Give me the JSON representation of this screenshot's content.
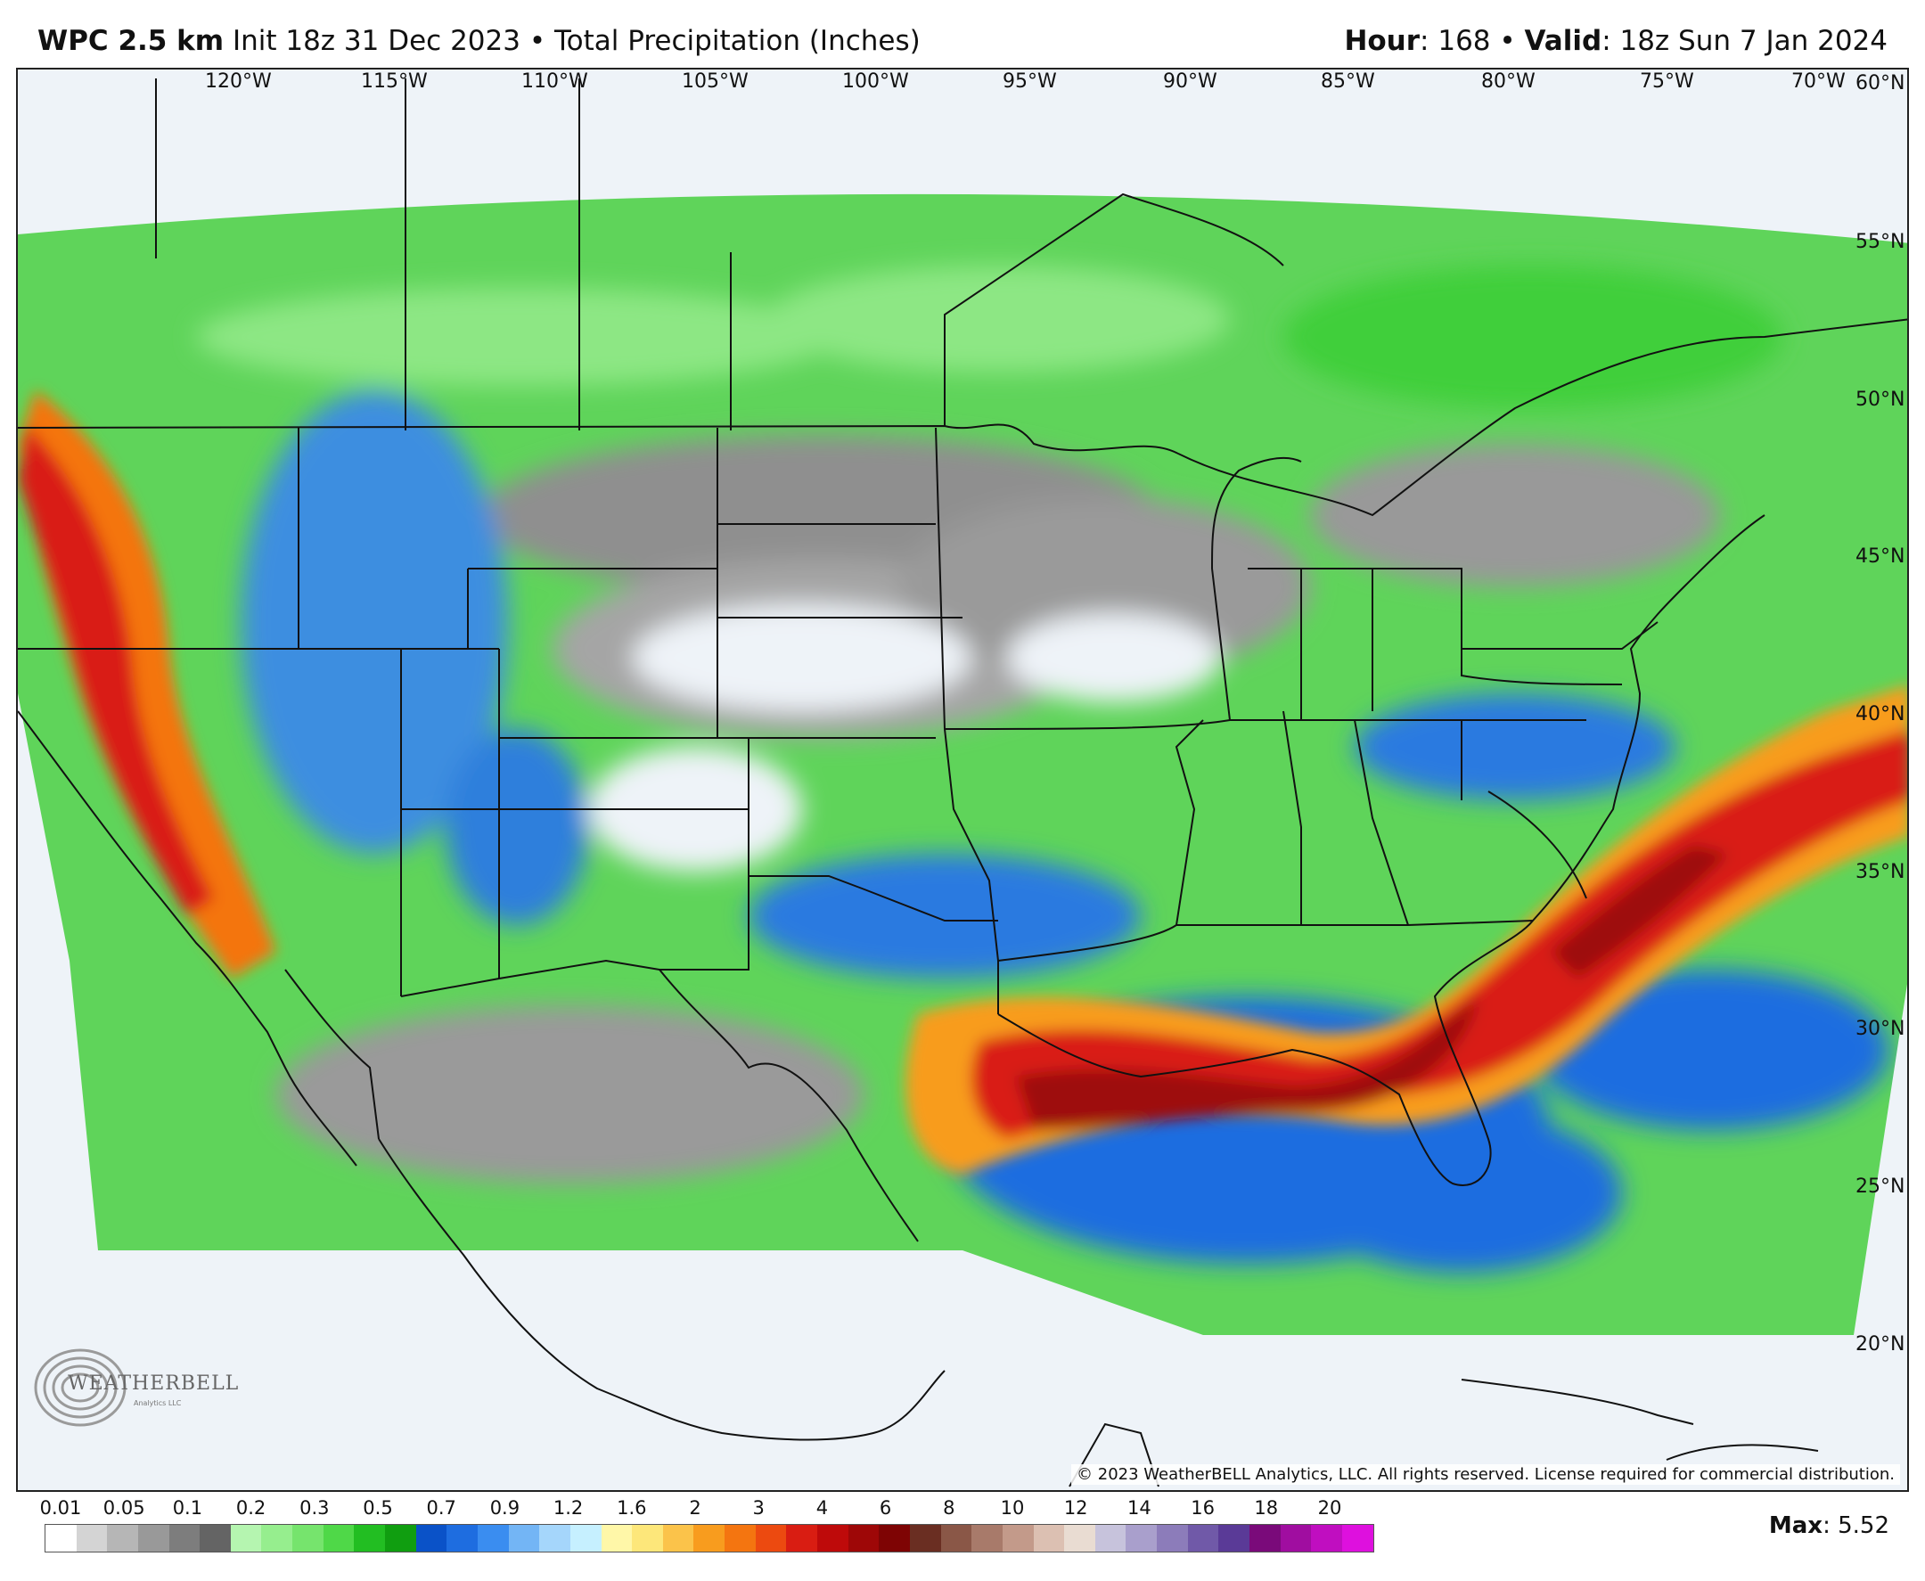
{
  "header": {
    "model": "WPC 2.5 km",
    "run_info": "Init 18z 31 Dec 2023 • Total Precipitation (Inches)",
    "hour_label": "Hour",
    "hour_value": ": 168 •",
    "valid_label": "Valid",
    "valid_value": ": 18z Sun 7 Jan 2024"
  },
  "map": {
    "longitude_labels": [
      "120°W",
      "115°W",
      "110°W",
      "105°W",
      "100°W",
      "95°W",
      "90°W",
      "85°W",
      "80°W",
      "75°W",
      "70°W"
    ],
    "latitude_labels": [
      "60°N",
      "55°N",
      "50°N",
      "45°N",
      "40°N",
      "35°N",
      "30°N",
      "25°N",
      "20°N"
    ],
    "copyright": "© 2023 WeatherBELL Analytics, LLC. All rights reserved. License required for commercial distribution.",
    "logo_text": "WEATHERBELL",
    "logo_subtext": "Analytics LLC"
  },
  "legend": {
    "tick_labels": [
      "0.01",
      "0.05",
      "0.1",
      "0.2",
      "0.3",
      "0.5",
      "0.7",
      "0.9",
      "1.2",
      "1.6",
      "2",
      "3",
      "4",
      "6",
      "8",
      "10",
      "12",
      "14",
      "16",
      "18",
      "20"
    ],
    "colors": [
      "#ffffff",
      "#d4d4d4",
      "#b6b6b6",
      "#999999",
      "#7d7d7d",
      "#646464",
      "#b5f5b0",
      "#96ee8e",
      "#76e46d",
      "#4fd848",
      "#22be22",
      "#109e10",
      "#0a52c8",
      "#1e6de0",
      "#3a8df0",
      "#73b5f5",
      "#a5d6fb",
      "#c6f0ff",
      "#fff7a8",
      "#fde77a",
      "#fbc34a",
      "#f89c1e",
      "#f47510",
      "#ec4a10",
      "#d91d12",
      "#be0a0a",
      "#9e0707",
      "#7e0404",
      "#6a2e22",
      "#8a5747",
      "#a87a6a",
      "#c39a8a",
      "#dcc0b2",
      "#e9dcd2",
      "#c7c3dc",
      "#a99fcc",
      "#8c7cba",
      "#7059a8",
      "#5a3a97",
      "#7a0a7a",
      "#a00da0",
      "#c00ec0",
      "#de10de"
    ],
    "max_label": "Max",
    "max_value": ": 5.52"
  }
}
